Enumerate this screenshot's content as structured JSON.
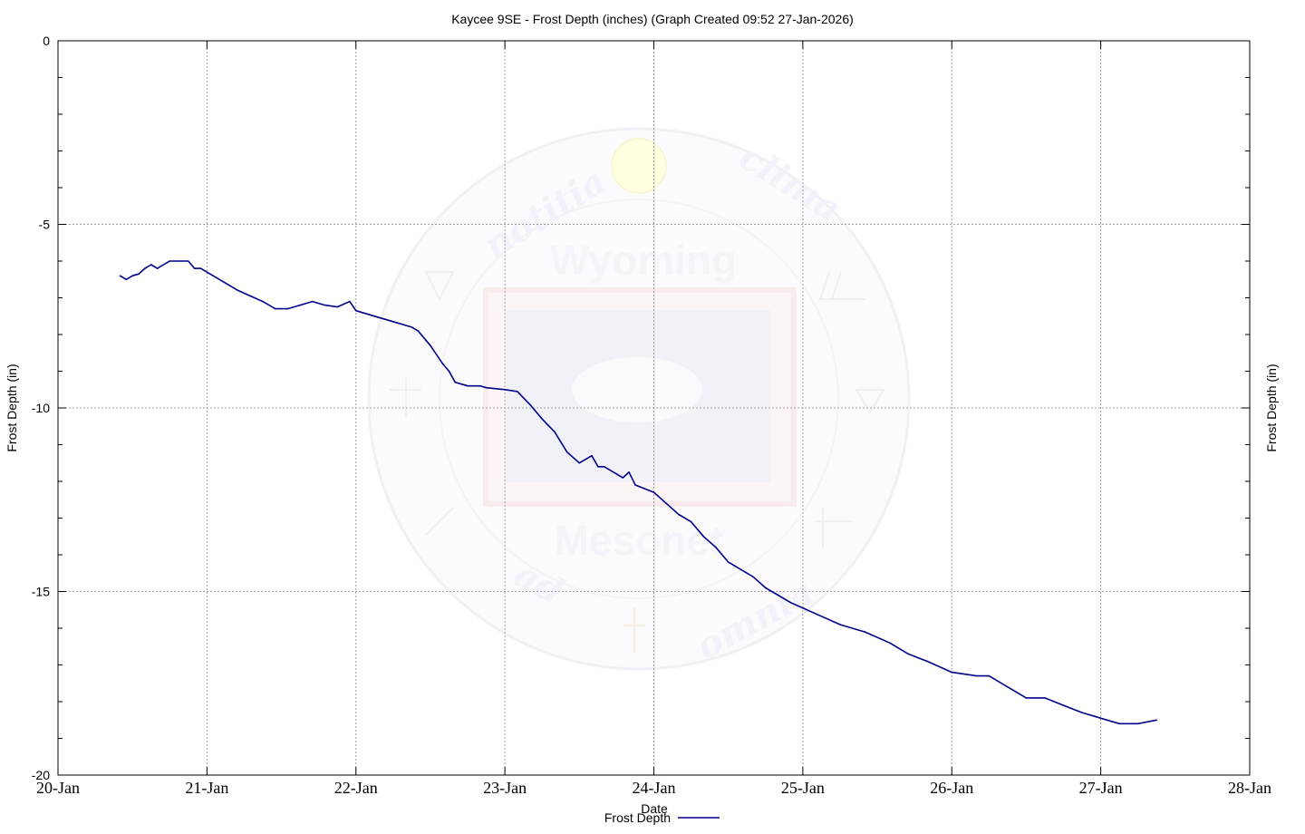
{
  "chart_data": {
    "type": "line",
    "title": "Kaycee 9SE - Frost Depth (inches) (Graph Created 09:52 27-Jan-2026)",
    "xlabel": "Date",
    "ylabel": "Frost Depth (in)",
    "ylabel_right": "Frost Depth (in)",
    "ylim": [
      -20,
      0
    ],
    "yticks": [
      0,
      -5,
      -10,
      -15,
      -20
    ],
    "ytick_labels": [
      "0",
      "-5",
      "-10",
      "-15",
      "-20"
    ],
    "xlim": [
      "2026-01-20",
      "2026-01-28"
    ],
    "xtick_labels": [
      "20-Jan",
      "21-Jan",
      "22-Jan",
      "23-Jan",
      "24-Jan",
      "25-Jan",
      "26-Jan",
      "27-Jan",
      "28-Jan"
    ],
    "grid": true,
    "legend_position": "bottom-center",
    "series": [
      {
        "name": "Frost Depth",
        "color": "#00008b",
        "x": [
          "2026-01-20 10:00",
          "2026-01-20 11:00",
          "2026-01-20 12:00",
          "2026-01-20 13:00",
          "2026-01-20 14:00",
          "2026-01-20 15:00",
          "2026-01-20 16:00",
          "2026-01-20 17:00",
          "2026-01-20 18:00",
          "2026-01-20 19:00",
          "2026-01-20 20:00",
          "2026-01-20 21:00",
          "2026-01-20 22:00",
          "2026-01-20 23:00",
          "2026-01-21 01:00",
          "2026-01-21 03:00",
          "2026-01-21 05:00",
          "2026-01-21 07:00",
          "2026-01-21 09:00",
          "2026-01-21 11:00",
          "2026-01-21 13:00",
          "2026-01-21 15:00",
          "2026-01-21 17:00",
          "2026-01-21 19:00",
          "2026-01-21 21:00",
          "2026-01-21 23:00",
          "2026-01-22 00:00",
          "2026-01-22 03:00",
          "2026-01-22 06:00",
          "2026-01-22 09:00",
          "2026-01-22 10:00",
          "2026-01-22 12:00",
          "2026-01-22 14:00",
          "2026-01-22 15:00",
          "2026-01-22 16:00",
          "2026-01-22 18:00",
          "2026-01-22 20:00",
          "2026-01-22 21:00",
          "2026-01-23 00:00",
          "2026-01-23 02:00",
          "2026-01-23 04:00",
          "2026-01-23 06:00",
          "2026-01-23 08:00",
          "2026-01-23 10:00",
          "2026-01-23 12:00",
          "2026-01-23 14:00",
          "2026-01-23 15:00",
          "2026-01-23 16:00",
          "2026-01-23 18:00",
          "2026-01-23 19:00",
          "2026-01-23 20:00",
          "2026-01-23 21:00",
          "2026-01-24 00:00",
          "2026-01-24 02:00",
          "2026-01-24 04:00",
          "2026-01-24 06:00",
          "2026-01-24 08:00",
          "2026-01-24 10:00",
          "2026-01-24 12:00",
          "2026-01-24 14:00",
          "2026-01-24 16:00",
          "2026-01-24 18:00",
          "2026-01-24 20:00",
          "2026-01-24 22:00",
          "2026-01-25 02:00",
          "2026-01-25 06:00",
          "2026-01-25 10:00",
          "2026-01-25 14:00",
          "2026-01-25 17:00",
          "2026-01-25 20:00",
          "2026-01-26 00:00",
          "2026-01-26 04:00",
          "2026-01-26 06:00",
          "2026-01-26 09:00",
          "2026-01-26 12:00",
          "2026-01-26 15:00",
          "2026-01-26 18:00",
          "2026-01-26 21:00",
          "2026-01-26 23:00",
          "2026-01-27 01:00",
          "2026-01-27 03:00",
          "2026-01-27 06:00",
          "2026-01-27 09:00"
        ],
        "values": [
          -6.4,
          -6.5,
          -6.4,
          -6.35,
          -6.2,
          -6.1,
          -6.2,
          -6.1,
          -6.0,
          -6.0,
          -6.0,
          -6.0,
          -6.2,
          -6.2,
          -6.4,
          -6.6,
          -6.8,
          -6.95,
          -7.1,
          -7.3,
          -7.3,
          -7.2,
          -7.1,
          -7.2,
          -7.25,
          -7.1,
          -7.35,
          -7.5,
          -7.65,
          -7.8,
          -7.9,
          -8.3,
          -8.8,
          -9.0,
          -9.3,
          -9.4,
          -9.4,
          -9.45,
          -9.5,
          -9.55,
          -9.9,
          -10.3,
          -10.65,
          -11.2,
          -11.5,
          -11.3,
          -11.6,
          -11.6,
          -11.8,
          -11.9,
          -11.75,
          -12.1,
          -12.3,
          -12.6,
          -12.9,
          -13.1,
          -13.5,
          -13.8,
          -14.2,
          -14.4,
          -14.6,
          -14.9,
          -15.1,
          -15.3,
          -15.6,
          -15.9,
          -16.1,
          -16.4,
          -16.7,
          -16.9,
          -17.2,
          -17.3,
          -17.3,
          -17.6,
          -17.9,
          -17.9,
          -18.1,
          -18.3,
          -18.4,
          -18.5,
          -18.6,
          -18.6,
          -18.5
        ]
      }
    ]
  }
}
